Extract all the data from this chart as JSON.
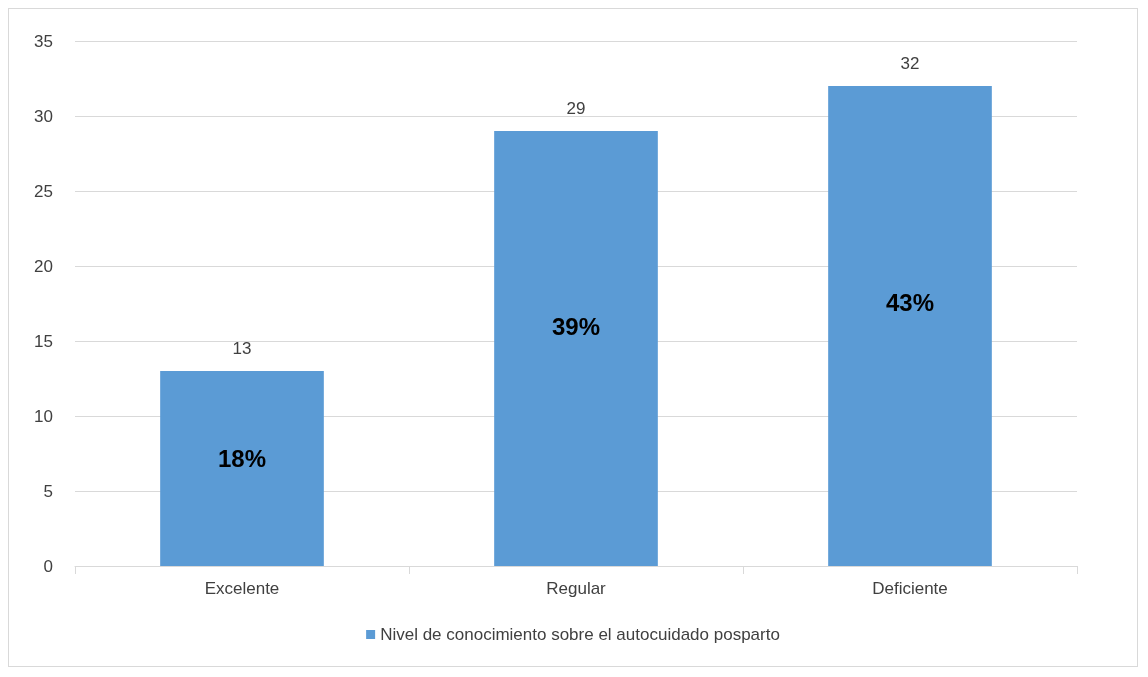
{
  "chart_data": {
    "type": "bar",
    "categories": [
      "Excelente",
      "Regular",
      "Deficiente"
    ],
    "series": [
      {
        "name": "Nivel de conocimiento sobre el autocuidado posparto",
        "color": "#5b9bd5",
        "values": [
          13,
          29,
          32
        ]
      }
    ],
    "data_labels": true,
    "annotations": [
      "18%",
      "39%",
      "43%"
    ],
    "ylim": [
      0,
      35
    ],
    "yticks": [
      0,
      5,
      10,
      15,
      20,
      25,
      30,
      35
    ],
    "grid": "y",
    "legend": "bottom"
  }
}
